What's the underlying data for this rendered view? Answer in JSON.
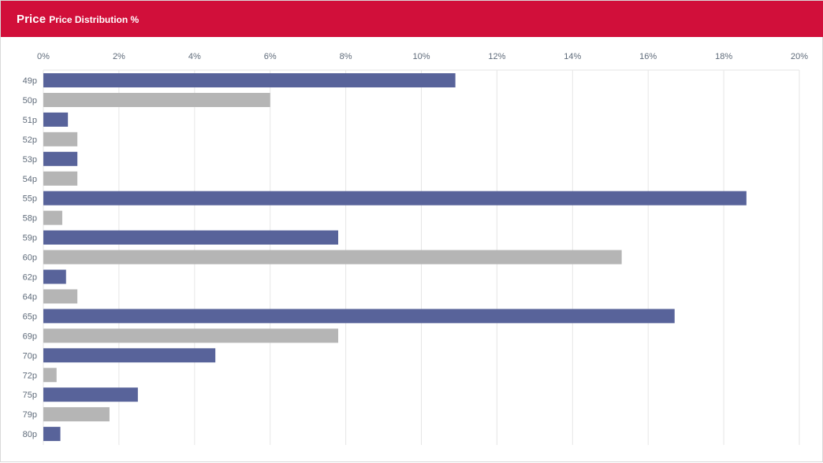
{
  "header": {
    "title": "Price",
    "subtitle": "Price Distribution %"
  },
  "colors": {
    "header_bg": "#d10f3a",
    "bar_primary": "#58639a",
    "bar_secondary": "#b5b5b5",
    "grid": "#e6e6e6"
  },
  "chart_data": {
    "type": "bar",
    "orientation": "horizontal",
    "title": "Price Distribution %",
    "xlabel": "",
    "ylabel": "",
    "xlim": [
      0,
      20
    ],
    "xticks": [
      "0%",
      "2%",
      "4%",
      "6%",
      "8%",
      "10%",
      "12%",
      "14%",
      "16%",
      "18%",
      "20%"
    ],
    "grid": true,
    "categories": [
      "49p",
      "50p",
      "51p",
      "52p",
      "53p",
      "54p",
      "55p",
      "58p",
      "59p",
      "60p",
      "62p",
      "64p",
      "65p",
      "69p",
      "70p",
      "72p",
      "75p",
      "79p",
      "80p"
    ],
    "values": [
      10.9,
      6.0,
      0.65,
      0.9,
      0.9,
      0.9,
      18.6,
      0.5,
      7.8,
      15.3,
      0.6,
      0.9,
      16.7,
      7.8,
      4.55,
      0.35,
      2.5,
      1.75,
      0.45
    ]
  }
}
